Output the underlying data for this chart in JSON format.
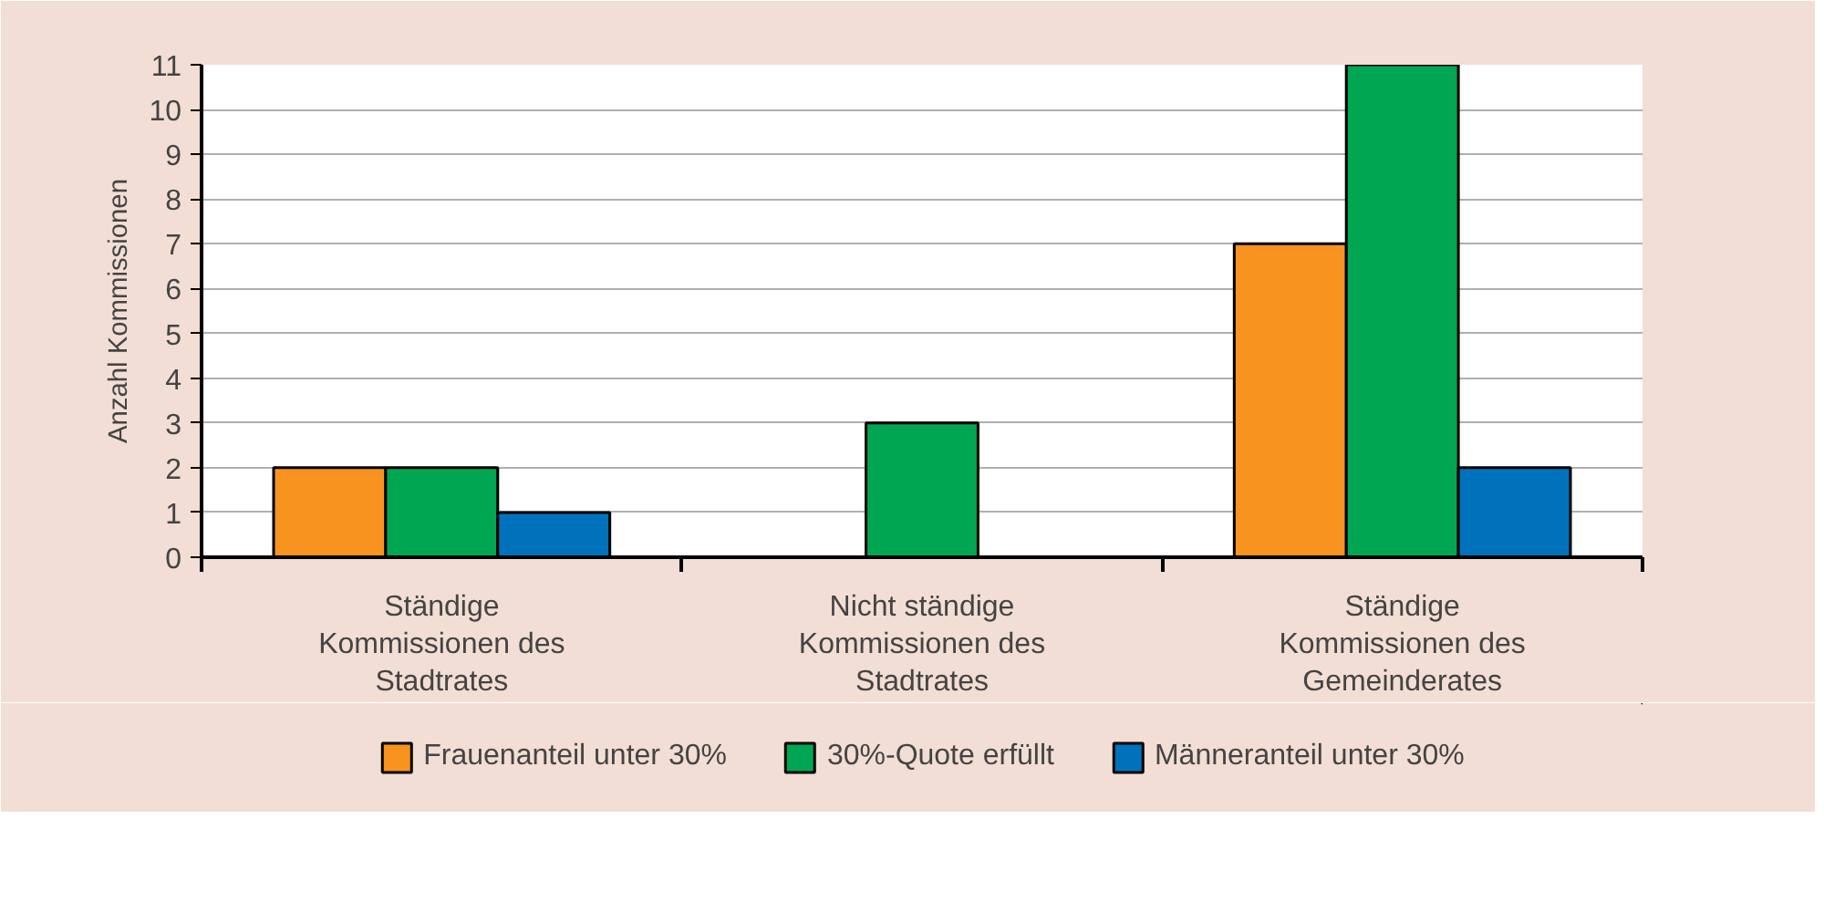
{
  "chart_data": {
    "type": "bar",
    "ylabel": "Anzahl Kommissionen",
    "categories": [
      "Ständige Kommissionen des Stadtrates",
      "Nicht ständige Kommissionen des Stadtrates",
      "Ständige Kommissionen des Gemeinderates"
    ],
    "series": [
      {
        "name": "Frauenanteil unter 30%",
        "color": "#f7931e",
        "values": [
          2,
          0,
          7
        ]
      },
      {
        "name": "30%-Quote erfüllt",
        "color": "#00a651",
        "values": [
          2,
          3,
          11
        ]
      },
      {
        "name": "Männeranteil unter 30%",
        "color": "#0072bc",
        "values": [
          1,
          0,
          2
        ]
      }
    ],
    "ylim": [
      0,
      11
    ],
    "yticks": [
      0,
      1,
      2,
      3,
      4,
      5,
      6,
      7,
      8,
      9,
      10,
      11
    ],
    "grid": "y",
    "legend": "bottom"
  }
}
